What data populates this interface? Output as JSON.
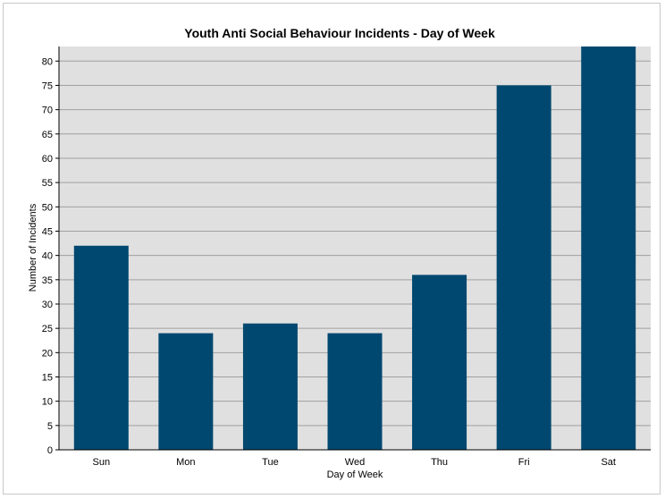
{
  "chart_data": {
    "type": "bar",
    "title": "Youth Anti Social Behaviour Incidents - Day of Week",
    "xlabel": "Day of Week",
    "ylabel": "Number of Incidents",
    "categories": [
      "Sun",
      "Mon",
      "Tue",
      "Wed",
      "Thu",
      "Fri",
      "Sat"
    ],
    "values": [
      42,
      24,
      26,
      24,
      36,
      75,
      83
    ],
    "ylim": [
      0,
      83
    ],
    "yticks": [
      0,
      5,
      10,
      15,
      20,
      25,
      30,
      35,
      40,
      45,
      50,
      55,
      60,
      65,
      70,
      75,
      80
    ],
    "grid": true,
    "bar_color": "#004870",
    "plot_background": "#e0e0e0",
    "grid_color": "#a0a0a0"
  }
}
